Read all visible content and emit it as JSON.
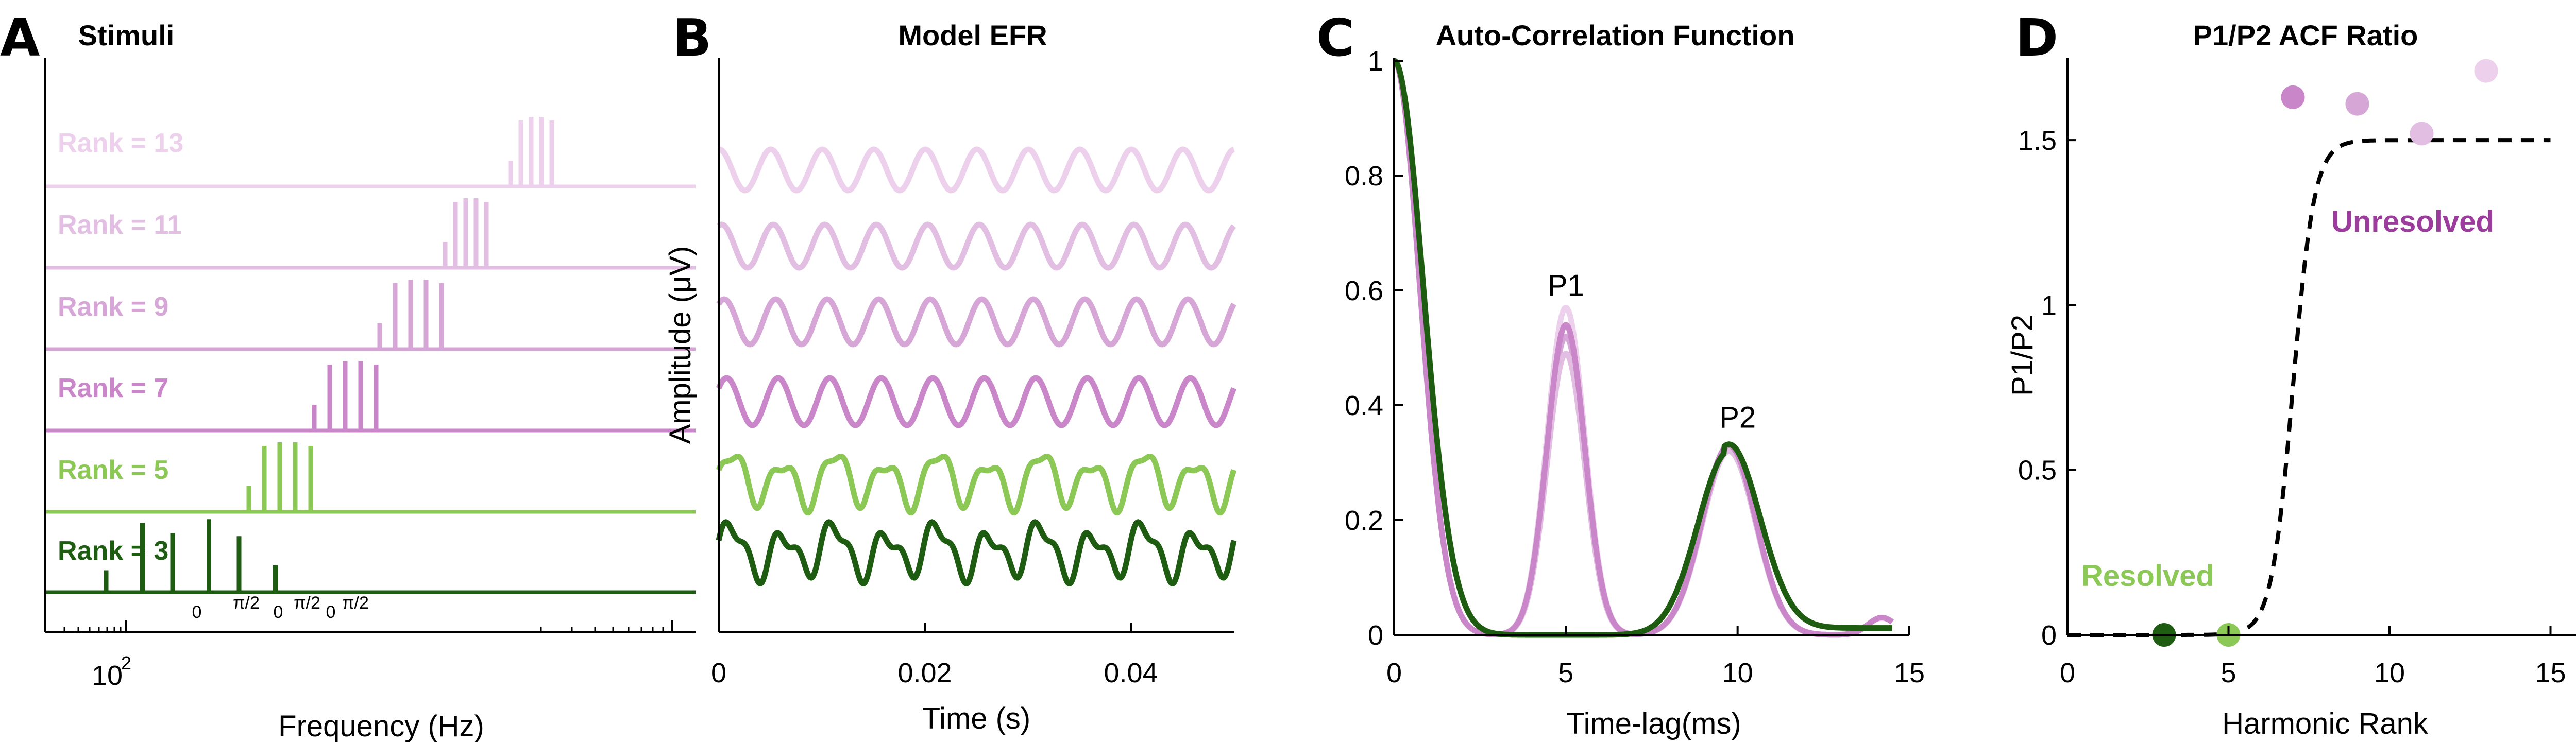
{
  "colors": {
    "r3": "#1e5c12",
    "r5": "#8cc855",
    "r7": "#c986c9",
    "r9": "#d6a6d6",
    "r11": "#e2bee2",
    "r13": "#ecd0ec",
    "upper": "#d6a4d6"
  },
  "chart_data": [
    {
      "type": "line",
      "letter": "A",
      "title": "Stimuli",
      "xlabel": "Frequency (Hz)",
      "x_tick_labels": [
        "10",
        "2"
      ],
      "x_scale": "log",
      "series": [
        {
          "name": "Rank = 3",
          "color_key": "r3",
          "components": [
            3,
            4,
            5,
            6,
            7
          ],
          "phase_labels": [
            "0",
            "π/2",
            "0",
            "π/2",
            "0",
            "π/2"
          ]
        },
        {
          "name": "Rank = 5",
          "color_key": "r5",
          "components": [
            5,
            6,
            7,
            8,
            9
          ]
        },
        {
          "name": "Rank = 7",
          "color_key": "r7",
          "components": [
            7,
            8,
            9,
            10,
            11
          ]
        },
        {
          "name": "Rank = 9",
          "color_key": "r9",
          "components": [
            9,
            10,
            11,
            12,
            13
          ]
        },
        {
          "name": "Rank = 11",
          "color_key": "r11",
          "components": [
            11,
            12,
            13,
            14,
            15
          ]
        },
        {
          "name": "Rank = 13",
          "color_key": "r13",
          "components": [
            13,
            14,
            15,
            16,
            17
          ]
        }
      ]
    },
    {
      "type": "line",
      "letter": "B",
      "title": "Model EFR",
      "xlabel": "Time (s)",
      "ylabel": "Amplitude (μV)",
      "xlim": [
        0,
        0.05
      ],
      "x_ticks": [
        0,
        0.02,
        0.04
      ],
      "x_tick_labels": [
        "0",
        "0.02",
        "0.04"
      ],
      "f0_hz": 200,
      "series": [
        {
          "color_key": "r3"
        },
        {
          "color_key": "r5"
        },
        {
          "color_key": "r7"
        },
        {
          "color_key": "r9"
        },
        {
          "color_key": "r11"
        },
        {
          "color_key": "r13"
        }
      ]
    },
    {
      "type": "line",
      "letter": "C",
      "title": "Auto-Correlation Function",
      "xlabel": "Time-lag(ms)",
      "xlim": [
        0,
        15
      ],
      "ylim": [
        0,
        1
      ],
      "x_ticks": [
        0,
        5,
        10,
        15
      ],
      "y_ticks": [
        0,
        0.2,
        0.4,
        0.6,
        0.8,
        1
      ],
      "annotations": [
        {
          "text": "P1",
          "x": 5.0,
          "y": 0.6
        },
        {
          "text": "P2",
          "x": 10.0,
          "y": 0.37
        }
      ],
      "series": [
        {
          "color_key": "r13",
          "p1": 0.57,
          "p2": 0.33
        },
        {
          "color_key": "r9",
          "p1": 0.52,
          "p2": 0.33
        },
        {
          "color_key": "r11",
          "p1": 0.49,
          "p2": 0.32
        },
        {
          "color_key": "r7",
          "p1": 0.54,
          "p2": 0.33
        },
        {
          "color_key": "r5",
          "p1": 0.0,
          "p2": 0.32
        },
        {
          "color_key": "r3",
          "p1": 0.0,
          "p2": 0.32
        }
      ]
    },
    {
      "type": "scatter",
      "letter": "D",
      "title": "P1/P2 ACF Ratio",
      "xlabel": "Harmonic Rank",
      "ylabel": "P1/P2",
      "xlim": [
        0,
        16
      ],
      "ylim": [
        0,
        1.75
      ],
      "x_ticks": [
        0,
        5,
        10,
        15
      ],
      "y_ticks": [
        0,
        0.5,
        1,
        1.5
      ],
      "y_tick_labels": [
        "0",
        "0.5",
        "1",
        "1.5"
      ],
      "points": [
        {
          "x": 3,
          "y": 0.0,
          "color_key": "r3"
        },
        {
          "x": 5,
          "y": 0.0,
          "color_key": "r5"
        },
        {
          "x": 7,
          "y": 1.63,
          "color_key": "r7"
        },
        {
          "x": 9,
          "y": 1.61,
          "color_key": "r9"
        },
        {
          "x": 11,
          "y": 1.52,
          "color_key": "r11"
        },
        {
          "x": 13,
          "y": 1.71,
          "color_key": "r13"
        }
      ],
      "fit": {
        "style": "dashed",
        "low": 0.0,
        "high": 1.5,
        "midpoint": 7.0,
        "slope": 3.0,
        "xmax": 15
      },
      "labels": [
        {
          "text": "Resolved",
          "color_key": "r5"
        },
        {
          "text": "Unresolved",
          "color_key": "r7"
        }
      ]
    }
  ]
}
